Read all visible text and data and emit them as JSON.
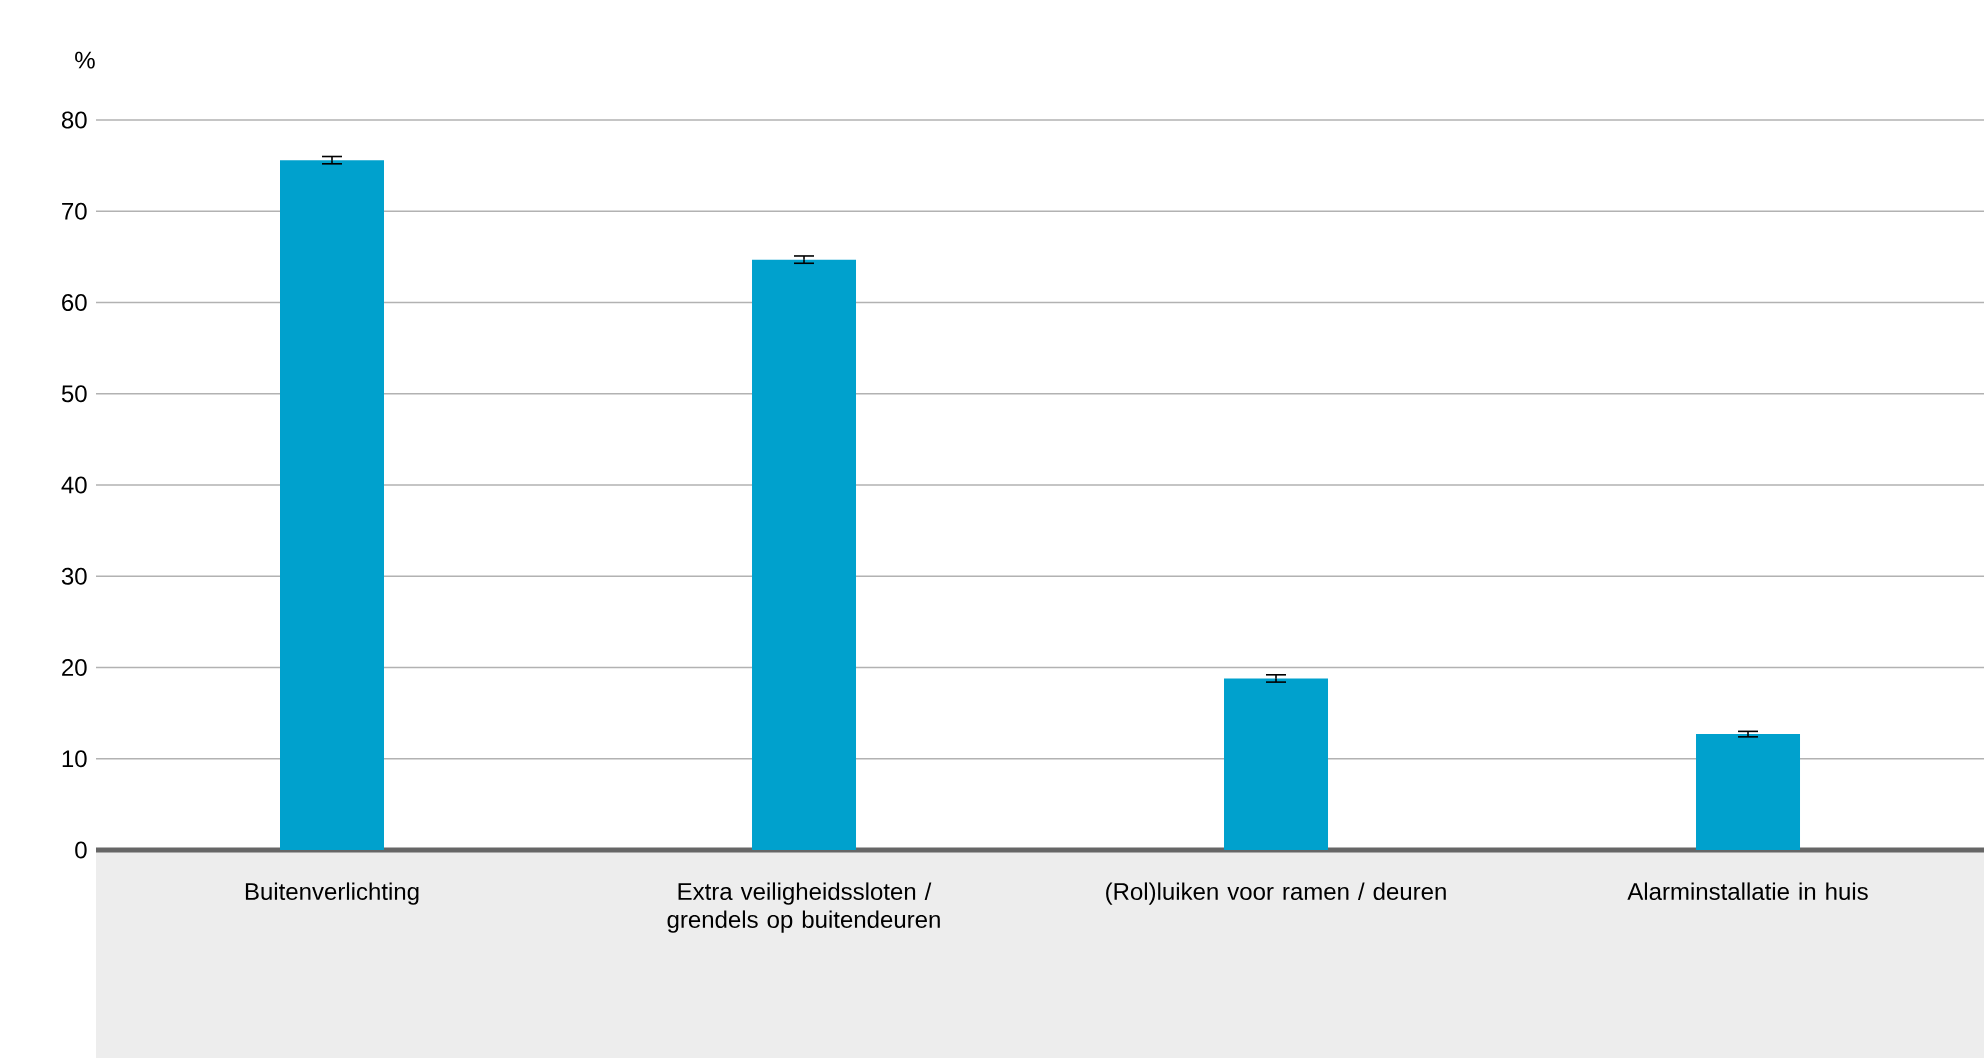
{
  "chart_data": {
    "type": "bar",
    "ylabel": "%",
    "categories": [
      "Buitenverlichting",
      "Extra veiligheidssloten / grendels op buitendeuren",
      "(Rol)luiken voor ramen / deuren",
      "Alarminstallatie in huis"
    ],
    "values": [
      75.6,
      64.7,
      18.8,
      12.7
    ],
    "errors": [
      0.4,
      0.4,
      0.4,
      0.3
    ],
    "color": "#00a1cd",
    "ylim": [
      0,
      80
    ],
    "yticks": [
      0,
      10,
      20,
      30,
      40,
      50,
      60,
      70,
      80
    ],
    "grid": "y"
  }
}
